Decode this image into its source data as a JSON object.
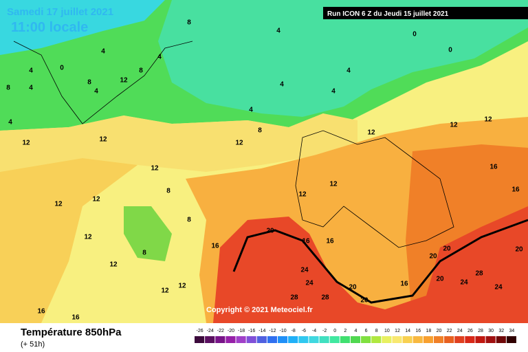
{
  "header": {
    "date": "Samedi 17 juillet 2021",
    "time": "11:00 locale",
    "run": "Run ICON 6 Z du Jeudi 15 juillet 2021"
  },
  "copyright": "Copyright © 2021 Meteociel.fr",
  "footer": {
    "title": "Température 850hPa",
    "lead": "(+ 51h)"
  },
  "scale": {
    "values": [
      -26,
      -24,
      -22,
      -20,
      -18,
      -16,
      -14,
      -12,
      -10,
      -8,
      -6,
      -4,
      -2,
      0,
      2,
      4,
      6,
      8,
      10,
      12,
      14,
      16,
      18,
      20,
      22,
      24,
      26,
      28,
      30,
      32,
      34
    ],
    "colors": [
      "#3c0a3c",
      "#5a1060",
      "#781488",
      "#9620a8",
      "#a040c8",
      "#8050d8",
      "#5060e0",
      "#3070f0",
      "#2090f8",
      "#20b0f8",
      "#30c8f0",
      "#40d8e0",
      "#40e0c0",
      "#40e8a0",
      "#40e070",
      "#50d850",
      "#80e040",
      "#b0e840",
      "#e8f060",
      "#f8e870",
      "#f8d050",
      "#f8b840",
      "#f8a030",
      "#f08028",
      "#e86020",
      "#e04020",
      "#d82818",
      "#c01810",
      "#a01010",
      "#700808",
      "#300000"
    ]
  },
  "contour_labels": [
    8,
    4,
    4,
    0,
    4,
    8,
    4,
    8,
    4,
    12,
    8,
    4,
    4,
    4,
    4,
    8,
    4,
    12,
    12,
    12,
    12,
    8,
    12,
    12,
    8,
    8,
    12,
    12,
    12,
    12,
    16,
    16,
    16,
    20,
    16,
    16,
    24,
    24,
    28,
    28,
    20,
    20,
    16,
    20,
    20,
    20,
    28,
    24,
    24,
    20,
    12,
    12,
    12,
    16,
    16,
    12,
    12,
    0,
    0,
    4
  ]
}
